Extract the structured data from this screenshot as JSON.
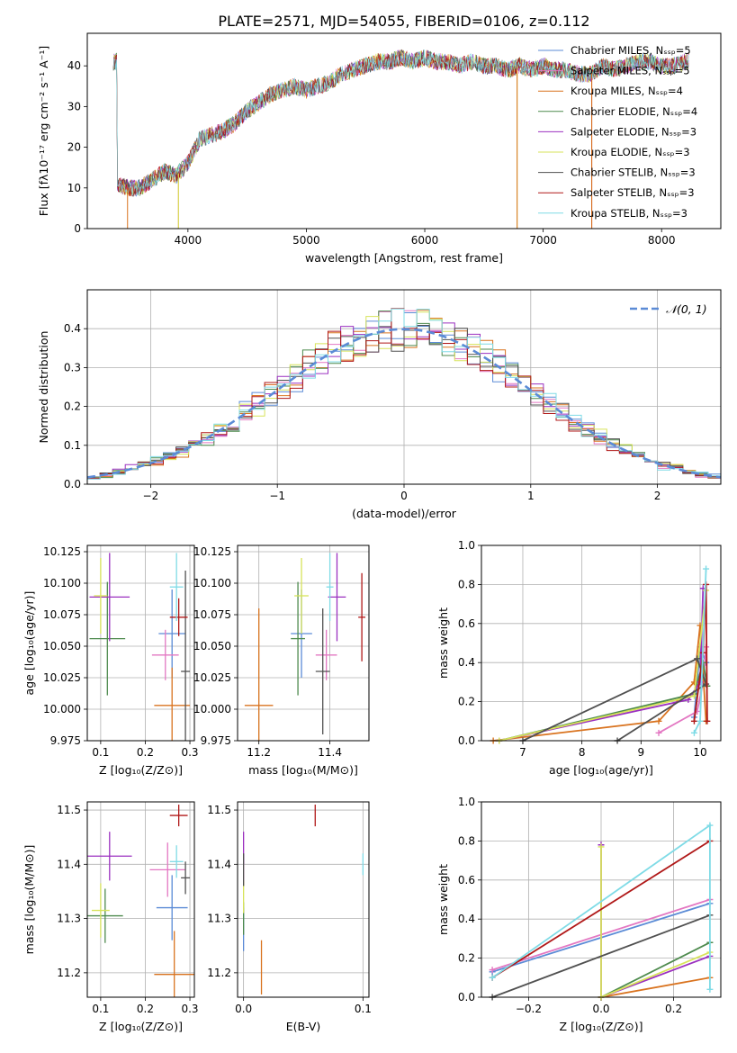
{
  "suptitle": "PLATE=2571, MJD=54055, FIBERID=0106, z=0.112",
  "colors": [
    "#5b8bd6",
    "#e377c2",
    "#d9731f",
    "#4d8a4d",
    "#9b30c0",
    "#d7e35a",
    "#505050",
    "#b01818",
    "#7fdbe6"
  ],
  "chart_data": [
    {
      "id": "spectrum",
      "type": "line",
      "xlabel": "wavelength [Angstrom, rest frame]",
      "ylabel": "Flux [fλ10⁻¹⁷ erg cm⁻² s⁻¹ A⁻¹]",
      "xlim": [
        3150,
        8500
      ],
      "ylim": [
        0,
        48
      ],
      "xticks": [
        4000,
        5000,
        6000,
        7000,
        8000
      ],
      "yticks": [
        0,
        10,
        20,
        30,
        40
      ],
      "spectrum_x": [
        3400,
        3500,
        3600,
        3700,
        3800,
        3900,
        4000,
        4100,
        4200,
        4300,
        4400,
        4500,
        4600,
        4700,
        4800,
        4900,
        5000,
        5100,
        5200,
        5300,
        5400,
        5500,
        5600,
        5700,
        5800,
        5900,
        6000,
        6100,
        6200,
        6300,
        6400,
        6500,
        6600,
        6700,
        6800,
        6900,
        7000,
        7100,
        7200,
        7300,
        7400,
        7500,
        7600,
        7700,
        7800,
        7900,
        8000,
        8100,
        8200
      ],
      "spectrum_y": [
        11,
        10,
        10,
        12,
        14,
        13,
        16,
        22,
        23,
        24,
        26,
        29,
        31,
        33,
        34,
        35,
        34,
        35,
        36,
        38,
        39,
        40,
        41,
        41,
        42,
        41,
        42,
        41,
        41,
        40,
        41,
        40,
        40,
        39,
        40,
        39,
        40,
        39,
        39,
        38,
        38,
        40,
        39,
        40,
        41,
        41,
        40,
        40,
        41
      ],
      "legend": [
        {
          "name": "Chabrier MILES, Nₛₛₚ=5"
        },
        {
          "name": "Salpeter MILES, Nₛₛₚ=5"
        },
        {
          "name": "Kroupa MILES, Nₛₛₚ=4"
        },
        {
          "name": "Chabrier ELODIE, Nₛₛₚ=4"
        },
        {
          "name": "Salpeter ELODIE, Nₛₛₚ=3"
        },
        {
          "name": "Kroupa ELODIE, Nₛₛₚ=3"
        },
        {
          "name": "Chabrier STELIB, Nₛₛₚ=3"
        },
        {
          "name": "Salpeter STELIB, Nₛₛₚ=3"
        },
        {
          "name": "Kroupa STELIB, Nₛₛₚ=3"
        }
      ]
    },
    {
      "id": "residuals",
      "type": "line",
      "xlabel": "(data-model)/error",
      "ylabel": "Normed distribution",
      "xlim": [
        -2.5,
        2.5
      ],
      "ylim": [
        0,
        0.5
      ],
      "xticks": [
        -2,
        -1,
        0,
        1,
        2
      ],
      "yticks": [
        0.0,
        0.1,
        0.2,
        0.3,
        0.4
      ],
      "grid": true,
      "legend_label": "𝒩(0, 1)",
      "legend_position": "top-right"
    },
    {
      "id": "age_vs_Z",
      "type": "scatter",
      "xlabel": "Z [log₁₀(Z/Z⊙)]",
      "ylabel": "age  [log₁₀(age/yr)]",
      "xlim": [
        0.07,
        0.31
      ],
      "ylim": [
        9.975,
        10.13
      ],
      "xticks": [
        0.1,
        0.2,
        0.3
      ],
      "yticks": [
        9.975,
        10.0,
        10.025,
        10.05,
        10.075,
        10.1,
        10.125
      ],
      "grid": true,
      "points": [
        {
          "c": 0,
          "x": 0.26,
          "y": 10.06,
          "xerr": 0.03,
          "yerr": 0.035
        },
        {
          "c": 1,
          "x": 0.245,
          "y": 10.043,
          "xerr": 0.03,
          "yerr": 0.02
        },
        {
          "c": 2,
          "x": 0.26,
          "y": 10.003,
          "xerr": 0.04,
          "yerr": 0.03
        },
        {
          "c": 3,
          "x": 0.115,
          "y": 10.056,
          "xerr": 0.04,
          "yerr": 0.045
        },
        {
          "c": 4,
          "x": 0.12,
          "y": 10.089,
          "xerr": 0.045,
          "yerr": 0.035
        },
        {
          "c": 5,
          "x": 0.1,
          "y": 10.09,
          "xerr": 0.015,
          "yerr": 0.03
        },
        {
          "c": 6,
          "x": 0.29,
          "y": 10.03,
          "xerr": 0.01,
          "yerr": 0.08
        },
        {
          "c": 7,
          "x": 0.275,
          "y": 10.073,
          "xerr": 0.02,
          "yerr": 0.015
        },
        {
          "c": 8,
          "x": 0.27,
          "y": 10.097,
          "xerr": 0.015,
          "yerr": 0.027
        }
      ]
    },
    {
      "id": "age_vs_mass",
      "type": "scatter",
      "xlabel": "mass [log₁₀(M/M⊙)]",
      "ylabel": "",
      "xlim": [
        11.14,
        11.51
      ],
      "ylim": [
        9.975,
        10.13
      ],
      "xticks": [
        11.2,
        11.4
      ],
      "yticks": [
        9.975,
        10.0,
        10.025,
        10.05,
        10.075,
        10.1,
        10.125
      ],
      "grid": true,
      "points": [
        {
          "c": 0,
          "x": 11.32,
          "y": 10.06,
          "xerr": 0.03,
          "yerr": 0.035
        },
        {
          "c": 1,
          "x": 11.39,
          "y": 10.043,
          "xerr": 0.03,
          "yerr": 0.02
        },
        {
          "c": 2,
          "x": 11.2,
          "y": 10.003,
          "xerr": 0.04,
          "yerr": 0.077
        },
        {
          "c": 3,
          "x": 11.31,
          "y": 10.056,
          "xerr": 0.02,
          "yerr": 0.045
        },
        {
          "c": 4,
          "x": 11.42,
          "y": 10.089,
          "xerr": 0.025,
          "yerr": 0.035
        },
        {
          "c": 5,
          "x": 11.32,
          "y": 10.09,
          "xerr": 0.02,
          "yerr": 0.03
        },
        {
          "c": 6,
          "x": 11.38,
          "y": 10.03,
          "xerr": 0.02,
          "yerr": 0.05
        },
        {
          "c": 7,
          "x": 11.49,
          "y": 10.073,
          "xerr": 0.01,
          "yerr": 0.035
        },
        {
          "c": 8,
          "x": 11.4,
          "y": 10.097,
          "xerr": 0.01,
          "yerr": 0.027
        }
      ]
    },
    {
      "id": "weight_vs_age",
      "type": "line",
      "xlabel": "age  [log₁₀(age/yr)]",
      "ylabel": "mass weight",
      "xlim": [
        6.3,
        10.35
      ],
      "ylim": [
        0,
        1
      ],
      "xticks": [
        7,
        8,
        9,
        10
      ],
      "yticks": [
        0.0,
        0.2,
        0.4,
        0.6,
        0.8,
        1.0
      ],
      "grid": true,
      "series": [
        {
          "c": 0,
          "x": [
            9.9,
            10.0,
            10.1
          ],
          "y": [
            0.12,
            0.48,
            0.4
          ]
        },
        {
          "c": 1,
          "x": [
            9.3,
            9.95,
            10.05,
            10.1
          ],
          "y": [
            0.04,
            0.15,
            0.3,
            0.48
          ]
        },
        {
          "c": 2,
          "x": [
            6.5,
            9.3,
            9.9,
            10.0,
            10.1
          ],
          "y": [
            0.0,
            0.1,
            0.3,
            0.59,
            0.1
          ]
        },
        {
          "c": 3,
          "x": [
            6.6,
            9.9,
            10.05,
            10.12
          ],
          "y": [
            0.0,
            0.24,
            0.4,
            0.28
          ]
        },
        {
          "c": 4,
          "x": [
            6.6,
            9.8,
            10.0,
            10.05
          ],
          "y": [
            0.0,
            0.21,
            0.3,
            0.78
          ]
        },
        {
          "c": 5,
          "x": [
            6.6,
            9.9,
            10.1
          ],
          "y": [
            0.0,
            0.23,
            0.77
          ]
        },
        {
          "c": 6,
          "x": [
            7.0,
            9.95,
            10.1,
            8.6
          ],
          "y": [
            0.0,
            0.42,
            0.29,
            0.0
          ]
        },
        {
          "c": 7,
          "x": [
            9.9,
            10.05,
            10.1,
            10.12
          ],
          "y": [
            0.1,
            0.45,
            0.8,
            0.1
          ]
        },
        {
          "c": 8,
          "x": [
            9.9,
            10.0,
            10.1
          ],
          "y": [
            0.04,
            0.1,
            0.88
          ]
        }
      ]
    },
    {
      "id": "mass_vs_Z",
      "type": "scatter",
      "xlabel": "Z [log₁₀(Z/Z⊙)]",
      "ylabel": "mass [log₁₀(M/M⊙)]",
      "xlim": [
        0.07,
        0.31
      ],
      "ylim": [
        11.155,
        11.515
      ],
      "xticks": [
        0.1,
        0.2,
        0.3
      ],
      "yticks": [
        11.2,
        11.3,
        11.4,
        11.5
      ],
      "grid": true,
      "points": [
        {
          "c": 0,
          "x": 0.26,
          "y": 11.32,
          "xerr": 0.035,
          "yerr": 0.06
        },
        {
          "c": 1,
          "x": 0.25,
          "y": 11.39,
          "xerr": 0.04,
          "yerr": 0.05
        },
        {
          "c": 2,
          "x": 0.265,
          "y": 11.197,
          "xerr": 0.045,
          "yerr": 0.08
        },
        {
          "c": 3,
          "x": 0.11,
          "y": 11.305,
          "xerr": 0.04,
          "yerr": 0.05
        },
        {
          "c": 4,
          "x": 0.12,
          "y": 11.415,
          "xerr": 0.05,
          "yerr": 0.045
        },
        {
          "c": 5,
          "x": 0.1,
          "y": 11.315,
          "xerr": 0.02,
          "yerr": 0.05
        },
        {
          "c": 6,
          "x": 0.29,
          "y": 11.375,
          "xerr": 0.01,
          "yerr": 0.03
        },
        {
          "c": 7,
          "x": 0.275,
          "y": 11.49,
          "xerr": 0.02,
          "yerr": 0.02
        },
        {
          "c": 8,
          "x": 0.27,
          "y": 11.405,
          "xerr": 0.015,
          "yerr": 0.03
        }
      ]
    },
    {
      "id": "mass_vs_ebv",
      "type": "scatter",
      "xlabel": "E(B-V)",
      "ylabel": "",
      "xlim": [
        -0.005,
        0.105
      ],
      "ylim": [
        11.155,
        11.515
      ],
      "xticks": [
        0.0,
        0.1
      ],
      "yticks": [
        11.2,
        11.3,
        11.4,
        11.5
      ],
      "grid": true,
      "points": [
        {
          "c": 0,
          "x": 0.0,
          "y": 11.28,
          "xerr": 0,
          "yerr": 0.04
        },
        {
          "c": 1,
          "x": 0.0,
          "y": 11.39,
          "xerr": 0,
          "yerr": 0.03
        },
        {
          "c": 2,
          "x": 0.015,
          "y": 11.21,
          "xerr": 0,
          "yerr": 0.05
        },
        {
          "c": 3,
          "x": 0.0,
          "y": 11.3,
          "xerr": 0,
          "yerr": 0.03
        },
        {
          "c": 4,
          "x": 0.0,
          "y": 11.43,
          "xerr": 0,
          "yerr": 0.03
        },
        {
          "c": 5,
          "x": 0.0,
          "y": 11.34,
          "xerr": 0,
          "yerr": 0.03
        },
        {
          "c": 6,
          "x": 0.0,
          "y": 11.39,
          "xerr": 0,
          "yerr": 0.03
        },
        {
          "c": 7,
          "x": 0.06,
          "y": 11.49,
          "xerr": 0,
          "yerr": 0.02
        },
        {
          "c": 8,
          "x": 0.1,
          "y": 11.4,
          "xerr": 0,
          "yerr": 0.02
        }
      ]
    },
    {
      "id": "weight_vs_Z",
      "type": "line",
      "xlabel": "Z [log₁₀(Z/Z⊙)]",
      "ylabel": "mass weight",
      "xlim": [
        -0.33,
        0.33
      ],
      "ylim": [
        0,
        1
      ],
      "xticks": [
        -0.2,
        0.0,
        0.2
      ],
      "yticks": [
        0.0,
        0.2,
        0.4,
        0.6,
        0.8,
        1.0
      ],
      "grid": true,
      "series": [
        {
          "c": 0,
          "x": [
            -0.3,
            0.3
          ],
          "y": [
            0.13,
            0.48
          ]
        },
        {
          "c": 1,
          "x": [
            -0.3,
            0.3
          ],
          "y": [
            0.14,
            0.5
          ]
        },
        {
          "c": 2,
          "x": [
            0.0,
            0.3
          ],
          "y": [
            0.0,
            0.1
          ]
        },
        {
          "c": 3,
          "x": [
            0.0,
            0.3
          ],
          "y": [
            0.0,
            0.28
          ]
        },
        {
          "c": 4,
          "x": [
            0.0,
            0.0,
            0.3
          ],
          "y": [
            0.78,
            0.0,
            0.21
          ]
        },
        {
          "c": 5,
          "x": [
            0.0,
            0.0,
            0.3
          ],
          "y": [
            0.77,
            0.0,
            0.23
          ]
        },
        {
          "c": 6,
          "x": [
            -0.3,
            0.3
          ],
          "y": [
            0.0,
            0.42
          ]
        },
        {
          "c": 7,
          "x": [
            -0.3,
            0.3
          ],
          "y": [
            0.1,
            0.8
          ]
        },
        {
          "c": 8,
          "x": [
            -0.3,
            0.3,
            0.3
          ],
          "y": [
            0.1,
            0.88,
            0.04
          ]
        }
      ]
    }
  ]
}
